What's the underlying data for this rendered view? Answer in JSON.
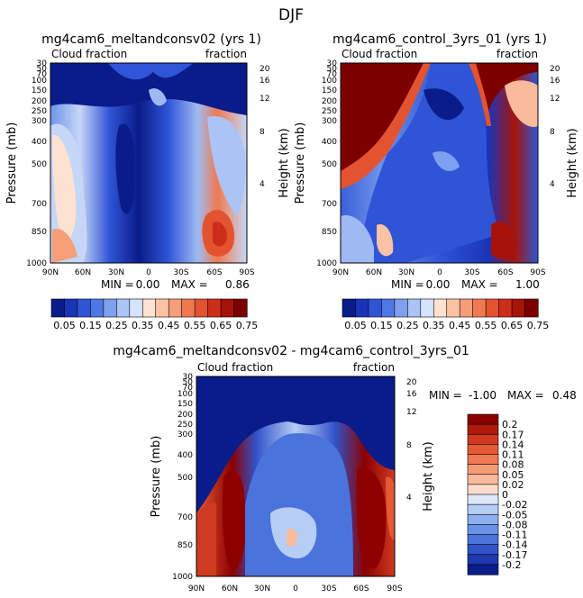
{
  "figure": {
    "title": "DJF",
    "stats_label_min": "MIN =",
    "stats_label_max": "MAX ="
  },
  "chart_data": [
    {
      "type": "heatmap",
      "title": "mg4cam6_meltandconsv02 (yrs 1)",
      "annotation_left": "Cloud fraction",
      "annotation_right": "fraction",
      "ylabel": "Pressure (mb)",
      "ylabel_right": "Height (km)",
      "x_tick_labels": [
        "90N",
        "60N",
        "30N",
        "0",
        "30S",
        "60S",
        "90S"
      ],
      "y_tick_labels": [
        "30",
        "50",
        "70",
        "100",
        "150",
        "200",
        "250",
        "300",
        "400",
        "500",
        "700",
        "850",
        "1000"
      ],
      "y_right_tick_labels": [
        "20",
        "16",
        "12",
        "8",
        "4"
      ],
      "min": "0.00",
      "max": "0.86",
      "colorbar": {
        "orientation": "horizontal",
        "labels": [
          "0.05",
          "0.15",
          "0.25",
          "0.35",
          "0.45",
          "0.55",
          "0.65",
          "0.75"
        ],
        "colors": [
          "#0a1b8a",
          "#1a34b8",
          "#2f55d6",
          "#4f77e6",
          "#7ea0ee",
          "#abc4f5",
          "#d6e4fb",
          "#fde2d2",
          "#fbc2a4",
          "#f59e78",
          "#ef7a50",
          "#e4532f",
          "#cd2e1a",
          "#a71309",
          "#7d0000"
        ]
      }
    },
    {
      "type": "heatmap",
      "title": "mg4cam6_control_3yrs_01 (yrs 1)",
      "annotation_left": "Cloud fraction",
      "annotation_right": "fraction",
      "ylabel": "Pressure (mb)",
      "ylabel_right": "Height (km)",
      "x_tick_labels": [
        "90N",
        "60N",
        "30N",
        "0",
        "30S",
        "60S",
        "90S"
      ],
      "y_tick_labels": [
        "30",
        "50",
        "70",
        "100",
        "150",
        "200",
        "250",
        "300",
        "400",
        "500",
        "700",
        "850",
        "1000"
      ],
      "y_right_tick_labels": [
        "20",
        "16",
        "12",
        "8",
        "4"
      ],
      "min": "0.00",
      "max": "1.00",
      "colorbar": {
        "orientation": "horizontal",
        "labels": [
          "0.05",
          "0.15",
          "0.25",
          "0.35",
          "0.45",
          "0.55",
          "0.65",
          "0.75"
        ],
        "colors": [
          "#0a1b8a",
          "#1a34b8",
          "#2f55d6",
          "#4f77e6",
          "#7ea0ee",
          "#abc4f5",
          "#d6e4fb",
          "#fde2d2",
          "#fbc2a4",
          "#f59e78",
          "#ef7a50",
          "#e4532f",
          "#cd2e1a",
          "#a71309",
          "#7d0000"
        ]
      }
    },
    {
      "type": "heatmap",
      "title": "mg4cam6_meltandconsv02 - mg4cam6_control_3yrs_01",
      "annotation_left": "Cloud fraction",
      "annotation_right": "fraction",
      "ylabel": "Pressure (mb)",
      "ylabel_right": "Height (km)",
      "x_tick_labels": [
        "90N",
        "60N",
        "30N",
        "0",
        "30S",
        "60S",
        "90S"
      ],
      "y_tick_labels": [
        "30",
        "50",
        "70",
        "100",
        "150",
        "200",
        "250",
        "300",
        "400",
        "500",
        "700",
        "850",
        "1000"
      ],
      "y_right_tick_labels": [
        "20",
        "16",
        "12",
        "8",
        "4"
      ],
      "min": "-1.00",
      "max": "0.48",
      "colorbar": {
        "orientation": "vertical",
        "labels": [
          "0.2",
          "0.17",
          "0.14",
          "0.11",
          "0.08",
          "0.05",
          "0.02",
          "0",
          "-0.02",
          "-0.05",
          "-0.08",
          "-0.11",
          "-0.14",
          "-0.17",
          "-0.2"
        ],
        "colors": [
          "#8c0000",
          "#b01a0a",
          "#cf3a20",
          "#e55a35",
          "#f07a52",
          "#f69a76",
          "#f9bb9c",
          "#fcdccb",
          "#dce8fa",
          "#b6cdf5",
          "#8eb0ee",
          "#6a92e6",
          "#4a73dc",
          "#3152c9",
          "#1f37b0",
          "#0a1c8a"
        ]
      }
    }
  ]
}
